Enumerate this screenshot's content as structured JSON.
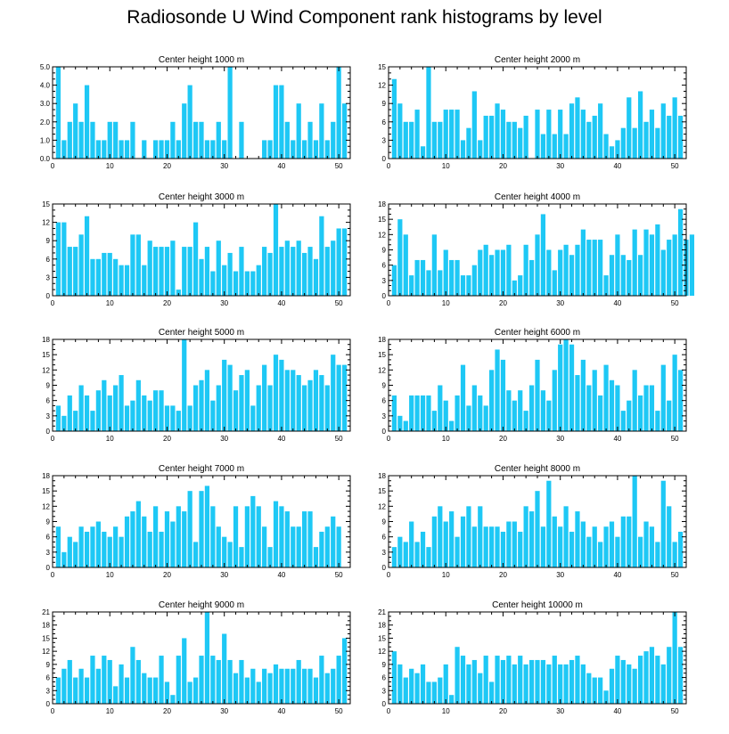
{
  "title": "Radiosonde U Wind Component rank histograms by level",
  "colors": {
    "bar": "#1EC8F5",
    "axis": "#000000",
    "background": "#ffffff"
  },
  "chart_data": [
    {
      "type": "bar",
      "title": "Center height 1000 m",
      "xlim": [
        0,
        52
      ],
      "ylim": [
        0,
        5
      ],
      "xticks": [
        0,
        10,
        20,
        30,
        40,
        50
      ],
      "yticks": [
        0,
        1,
        2,
        3,
        4,
        5
      ],
      "ytick_labels": [
        "0.0",
        "1.0",
        "2.0",
        "3.0",
        "4.0",
        "5.0"
      ],
      "values": [
        5,
        1,
        2,
        3,
        2,
        4,
        2,
        1,
        1,
        2,
        2,
        1,
        1,
        2,
        0,
        1,
        0,
        1,
        1,
        1,
        2,
        1,
        3,
        4,
        2,
        2,
        1,
        1,
        2,
        1,
        5,
        0,
        2,
        0,
        0,
        0,
        1,
        1,
        4,
        4,
        2,
        1,
        3,
        1,
        2,
        1,
        3,
        1,
        2,
        5,
        3
      ]
    },
    {
      "type": "bar",
      "title": "Center height 2000 m",
      "xlim": [
        0,
        52
      ],
      "ylim": [
        0,
        15
      ],
      "xticks": [
        0,
        10,
        20,
        30,
        40,
        50
      ],
      "yticks": [
        0,
        3,
        6,
        9,
        12,
        15
      ],
      "ytick_labels": [
        "0",
        "3",
        "6",
        "9",
        "12",
        "15"
      ],
      "values": [
        13,
        9,
        6,
        6,
        8,
        2,
        15,
        6,
        6,
        8,
        8,
        8,
        3,
        5,
        11,
        3,
        7,
        7,
        9,
        8,
        6,
        6,
        5,
        7,
        0,
        8,
        4,
        8,
        4,
        8,
        4,
        9,
        10,
        8,
        6,
        7,
        9,
        4,
        2,
        3,
        5,
        10,
        5,
        11,
        6,
        8,
        5,
        9,
        7,
        10,
        7
      ]
    },
    {
      "type": "bar",
      "title": "Center height 3000 m",
      "xlim": [
        0,
        52
      ],
      "ylim": [
        0,
        15
      ],
      "xticks": [
        0,
        10,
        20,
        30,
        40,
        50
      ],
      "yticks": [
        0,
        3,
        6,
        9,
        12,
        15
      ],
      "ytick_labels": [
        "0",
        "3",
        "6",
        "9",
        "12",
        "15"
      ],
      "values": [
        12,
        12,
        8,
        8,
        10,
        13,
        6,
        6,
        7,
        7,
        6,
        5,
        5,
        10,
        10,
        5,
        9,
        8,
        8,
        8,
        9,
        1,
        8,
        8,
        12,
        6,
        8,
        4,
        9,
        5,
        7,
        4,
        8,
        4,
        4,
        5,
        8,
        7,
        15,
        8,
        9,
        8,
        9,
        7,
        8,
        6,
        13,
        8,
        9,
        11,
        11
      ]
    },
    {
      "type": "bar",
      "title": "Center height 4000 m",
      "xlim": [
        0,
        52
      ],
      "ylim": [
        0,
        18
      ],
      "xticks": [
        0,
        10,
        20,
        30,
        40,
        50
      ],
      "yticks": [
        0,
        3,
        6,
        9,
        12,
        15,
        18
      ],
      "ytick_labels": [
        "0",
        "3",
        "6",
        "9",
        "12",
        "15",
        "18"
      ],
      "values": [
        6,
        15,
        12,
        4,
        7,
        7,
        5,
        12,
        5,
        9,
        7,
        7,
        4,
        4,
        6,
        9,
        10,
        8,
        9,
        9,
        10,
        3,
        4,
        10,
        7,
        12,
        16,
        9,
        5,
        9,
        10,
        8,
        10,
        13,
        11,
        11,
        11,
        4,
        8,
        12,
        8,
        7,
        13,
        8,
        13,
        12,
        14,
        9,
        11,
        12,
        17,
        11,
        12
      ]
    },
    {
      "type": "bar",
      "title": "Center height 5000 m",
      "xlim": [
        0,
        52
      ],
      "ylim": [
        0,
        18
      ],
      "xticks": [
        0,
        10,
        20,
        30,
        40,
        50
      ],
      "yticks": [
        0,
        3,
        6,
        9,
        12,
        15,
        18
      ],
      "ytick_labels": [
        "0",
        "3",
        "6",
        "9",
        "12",
        "15",
        "18"
      ],
      "values": [
        5,
        3,
        7,
        4,
        9,
        7,
        4,
        8,
        10,
        7,
        9,
        11,
        5,
        6,
        10,
        7,
        6,
        8,
        8,
        5,
        5,
        4,
        18,
        5,
        9,
        10,
        12,
        6,
        9,
        14,
        13,
        8,
        11,
        12,
        5,
        9,
        13,
        9,
        15,
        14,
        12,
        12,
        11,
        9,
        10,
        12,
        11,
        9,
        15,
        13,
        13
      ]
    },
    {
      "type": "bar",
      "title": "Center height 6000 m",
      "xlim": [
        0,
        52
      ],
      "ylim": [
        0,
        18
      ],
      "xticks": [
        0,
        10,
        20,
        30,
        40,
        50
      ],
      "yticks": [
        0,
        3,
        6,
        9,
        12,
        15,
        18
      ],
      "ytick_labels": [
        "0",
        "3",
        "6",
        "9",
        "12",
        "15",
        "18"
      ],
      "values": [
        7,
        3,
        2,
        7,
        7,
        7,
        7,
        4,
        9,
        6,
        2,
        7,
        13,
        5,
        9,
        7,
        5,
        12,
        16,
        14,
        8,
        6,
        8,
        4,
        9,
        14,
        8,
        6,
        12,
        17,
        18,
        17,
        11,
        14,
        9,
        12,
        7,
        13,
        10,
        9,
        4,
        6,
        12,
        7,
        9,
        9,
        4,
        13,
        6,
        15,
        12
      ]
    },
    {
      "type": "bar",
      "title": "Center height 7000 m",
      "xlim": [
        0,
        52
      ],
      "ylim": [
        0,
        18
      ],
      "xticks": [
        0,
        10,
        20,
        30,
        40,
        50
      ],
      "yticks": [
        0,
        3,
        6,
        9,
        12,
        15,
        18
      ],
      "ytick_labels": [
        "0",
        "3",
        "6",
        "9",
        "12",
        "15",
        "18"
      ],
      "values": [
        8,
        3,
        6,
        5,
        8,
        7,
        8,
        9,
        7,
        6,
        8,
        6,
        10,
        11,
        13,
        10,
        7,
        12,
        7,
        11,
        9,
        12,
        11,
        15,
        5,
        15,
        16,
        12,
        8,
        6,
        5,
        12,
        4,
        12,
        14,
        12,
        8,
        4,
        13,
        12,
        11,
        8,
        8,
        11,
        11,
        4,
        7,
        8,
        10,
        8
      ]
    },
    {
      "type": "bar",
      "title": "Center height 8000 m",
      "xlim": [
        0,
        52
      ],
      "ylim": [
        0,
        18
      ],
      "xticks": [
        0,
        10,
        20,
        30,
        40,
        50
      ],
      "yticks": [
        0,
        3,
        6,
        9,
        12,
        15,
        18
      ],
      "ytick_labels": [
        "0",
        "3",
        "6",
        "9",
        "12",
        "15",
        "18"
      ],
      "values": [
        4,
        6,
        5,
        9,
        5,
        7,
        4,
        10,
        12,
        9,
        11,
        6,
        10,
        12,
        8,
        12,
        8,
        8,
        8,
        7,
        9,
        9,
        7,
        12,
        11,
        15,
        8,
        17,
        10,
        8,
        12,
        7,
        11,
        9,
        6,
        8,
        5,
        8,
        9,
        6,
        10,
        10,
        18,
        6,
        9,
        8,
        5,
        17,
        12,
        5,
        7
      ]
    },
    {
      "type": "bar",
      "title": "Center height 9000 m",
      "xlim": [
        0,
        52
      ],
      "ylim": [
        0,
        21
      ],
      "xticks": [
        0,
        10,
        20,
        30,
        40,
        50
      ],
      "yticks": [
        0,
        3,
        6,
        9,
        12,
        15,
        18,
        21
      ],
      "ytick_labels": [
        "0",
        "3",
        "6",
        "9",
        "12",
        "15",
        "18",
        "21"
      ],
      "values": [
        6,
        8,
        10,
        6,
        8,
        6,
        11,
        8,
        11,
        10,
        4,
        9,
        6,
        13,
        10,
        7,
        6,
        6,
        11,
        5,
        2,
        11,
        15,
        5,
        6,
        11,
        21,
        11,
        10,
        16,
        10,
        7,
        10,
        6,
        8,
        5,
        8,
        7,
        9,
        8,
        8,
        8,
        10,
        8,
        8,
        6,
        11,
        7,
        8,
        11,
        15
      ]
    },
    {
      "type": "bar",
      "title": "Center height 10000 m",
      "xlim": [
        0,
        52
      ],
      "ylim": [
        0,
        21
      ],
      "xticks": [
        0,
        10,
        20,
        30,
        40,
        50
      ],
      "yticks": [
        0,
        3,
        6,
        9,
        12,
        15,
        18,
        21
      ],
      "ytick_labels": [
        "0",
        "3",
        "6",
        "9",
        "12",
        "15",
        "18",
        "21"
      ],
      "values": [
        12,
        9,
        6,
        8,
        7,
        9,
        5,
        5,
        6,
        9,
        2,
        13,
        11,
        9,
        10,
        7,
        11,
        5,
        11,
        10,
        11,
        9,
        11,
        9,
        10,
        10,
        10,
        9,
        11,
        9,
        9,
        10,
        11,
        9,
        7,
        6,
        6,
        3,
        8,
        11,
        10,
        9,
        8,
        11,
        12,
        13,
        11,
        9,
        13,
        21,
        13
      ]
    }
  ]
}
